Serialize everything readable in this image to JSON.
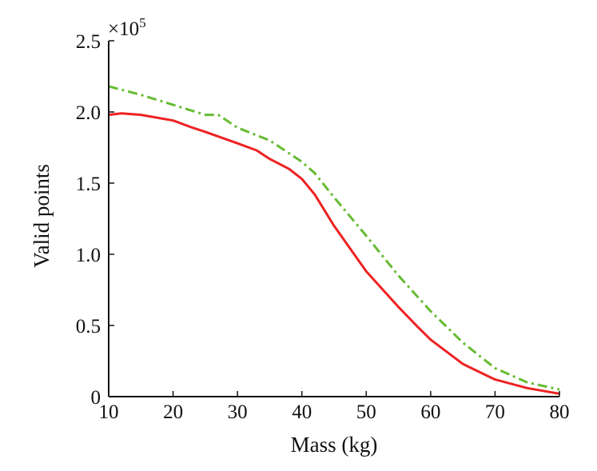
{
  "chart_data": {
    "type": "line",
    "title": "",
    "xlabel": "Mass (kg)",
    "ylabel": "Valid points",
    "xlim": [
      10,
      80
    ],
    "ylim": [
      0,
      2.5
    ],
    "y_multiplier_base": "×10",
    "y_multiplier_exp": "5",
    "x_ticks": [
      10,
      20,
      30,
      40,
      50,
      60,
      70,
      80
    ],
    "y_ticks": [
      0,
      0.5,
      1.0,
      1.5,
      2.0,
      2.5
    ],
    "x_tick_labels": [
      "10",
      "20",
      "30",
      "40",
      "50",
      "60",
      "70",
      "80"
    ],
    "y_tick_labels": [
      "0",
      "0.5",
      "1.0",
      "1.5",
      "2.0",
      "2.5"
    ],
    "grid": false,
    "legend": null,
    "series": [
      {
        "name": "green dash-dot",
        "color": "#66bb33",
        "style": "dashdot",
        "x": [
          10,
          15,
          20,
          25,
          27,
          30,
          35,
          40,
          42,
          45,
          50,
          55,
          60,
          65,
          70,
          75,
          80
        ],
        "y": [
          2.18,
          2.12,
          2.05,
          1.98,
          1.98,
          1.89,
          1.8,
          1.65,
          1.57,
          1.4,
          1.13,
          0.85,
          0.6,
          0.38,
          0.2,
          0.1,
          0.05
        ]
      },
      {
        "name": "red solid",
        "color": "#ee2222",
        "style": "solid",
        "x": [
          10,
          12,
          15,
          20,
          23,
          25,
          30,
          33,
          35,
          38,
          40,
          42,
          45,
          50,
          55,
          58,
          60,
          65,
          70,
          75,
          80
        ],
        "y": [
          1.98,
          1.99,
          1.98,
          1.94,
          1.89,
          1.86,
          1.78,
          1.73,
          1.67,
          1.6,
          1.53,
          1.42,
          1.2,
          0.88,
          0.63,
          0.49,
          0.4,
          0.23,
          0.12,
          0.06,
          0.02
        ]
      }
    ]
  }
}
